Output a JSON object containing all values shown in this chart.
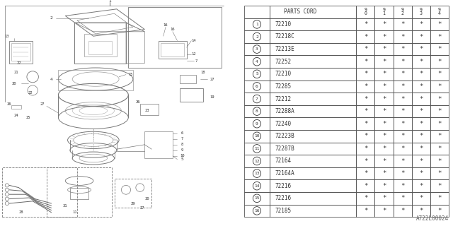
{
  "parts_cord_header": "PARTS CORD",
  "year_cols": [
    "9\n0",
    "9\n1",
    "9\n2",
    "9\n3",
    "9\n4"
  ],
  "rows": [
    {
      "num": 1,
      "code": "72210"
    },
    {
      "num": 2,
      "code": "72218C"
    },
    {
      "num": 3,
      "code": "72213E"
    },
    {
      "num": 4,
      "code": "72252"
    },
    {
      "num": 5,
      "code": "72210"
    },
    {
      "num": 6,
      "code": "72285"
    },
    {
      "num": 7,
      "code": "72212"
    },
    {
      "num": 8,
      "code": "72288A"
    },
    {
      "num": 9,
      "code": "72240"
    },
    {
      "num": 10,
      "code": "72223B"
    },
    {
      "num": 11,
      "code": "72287B"
    },
    {
      "num": 12,
      "code": "72164"
    },
    {
      "num": 13,
      "code": "72164A"
    },
    {
      "num": 14,
      "code": "72216"
    },
    {
      "num": 15,
      "code": "72216"
    },
    {
      "num": 16,
      "code": "72185"
    }
  ],
  "watermark": "A722L00024",
  "bg_color": "#ffffff",
  "line_color": "#555555",
  "text_color": "#333333"
}
